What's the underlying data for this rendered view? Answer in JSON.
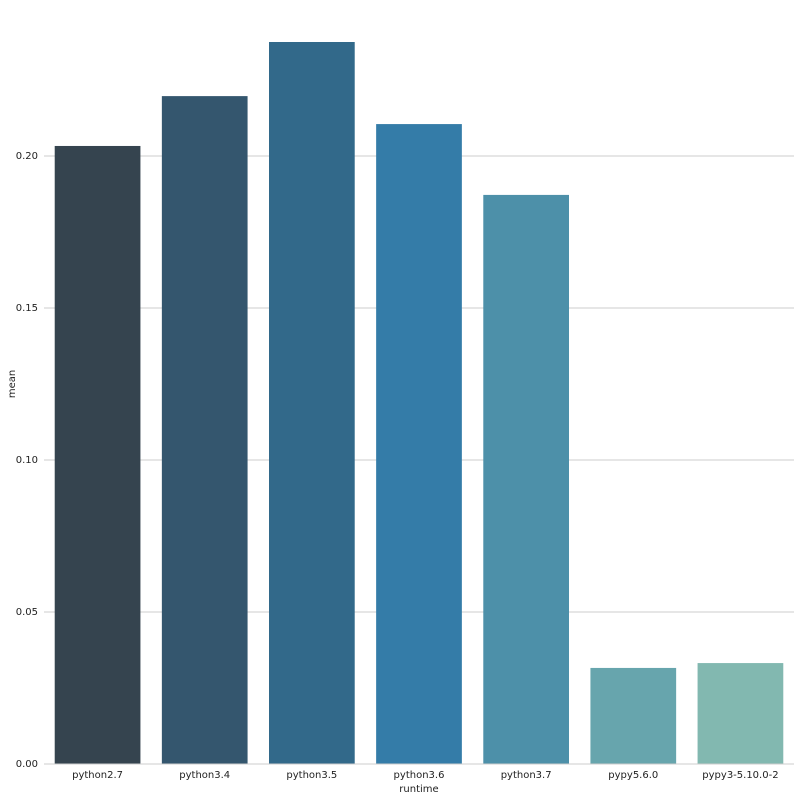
{
  "chart_data": {
    "type": "bar",
    "categories": [
      "python2.7",
      "python3.4",
      "python3.5",
      "python3.6",
      "python3.7",
      "pypy5.6.0",
      "pypy3-5.10.0-2"
    ],
    "values": [
      0.2033,
      0.2197,
      0.2375,
      0.2105,
      0.1872,
      0.0316,
      0.0332
    ],
    "colors": [
      "#35444f",
      "#34566e",
      "#32698a",
      "#347ca8",
      "#4d90a9",
      "#67a5ad",
      "#82b8b0"
    ],
    "xlabel": "runtime",
    "ylabel": "mean",
    "ylim": [
      0,
      0.25
    ],
    "yticks": [
      {
        "value": 0,
        "label": "0.00"
      },
      {
        "value": 0.05,
        "label": "0.05"
      },
      {
        "value": 0.1,
        "label": "0.10"
      },
      {
        "value": 0.15,
        "label": "0.15"
      },
      {
        "value": 0.2,
        "label": "0.20"
      }
    ],
    "grid": true
  }
}
